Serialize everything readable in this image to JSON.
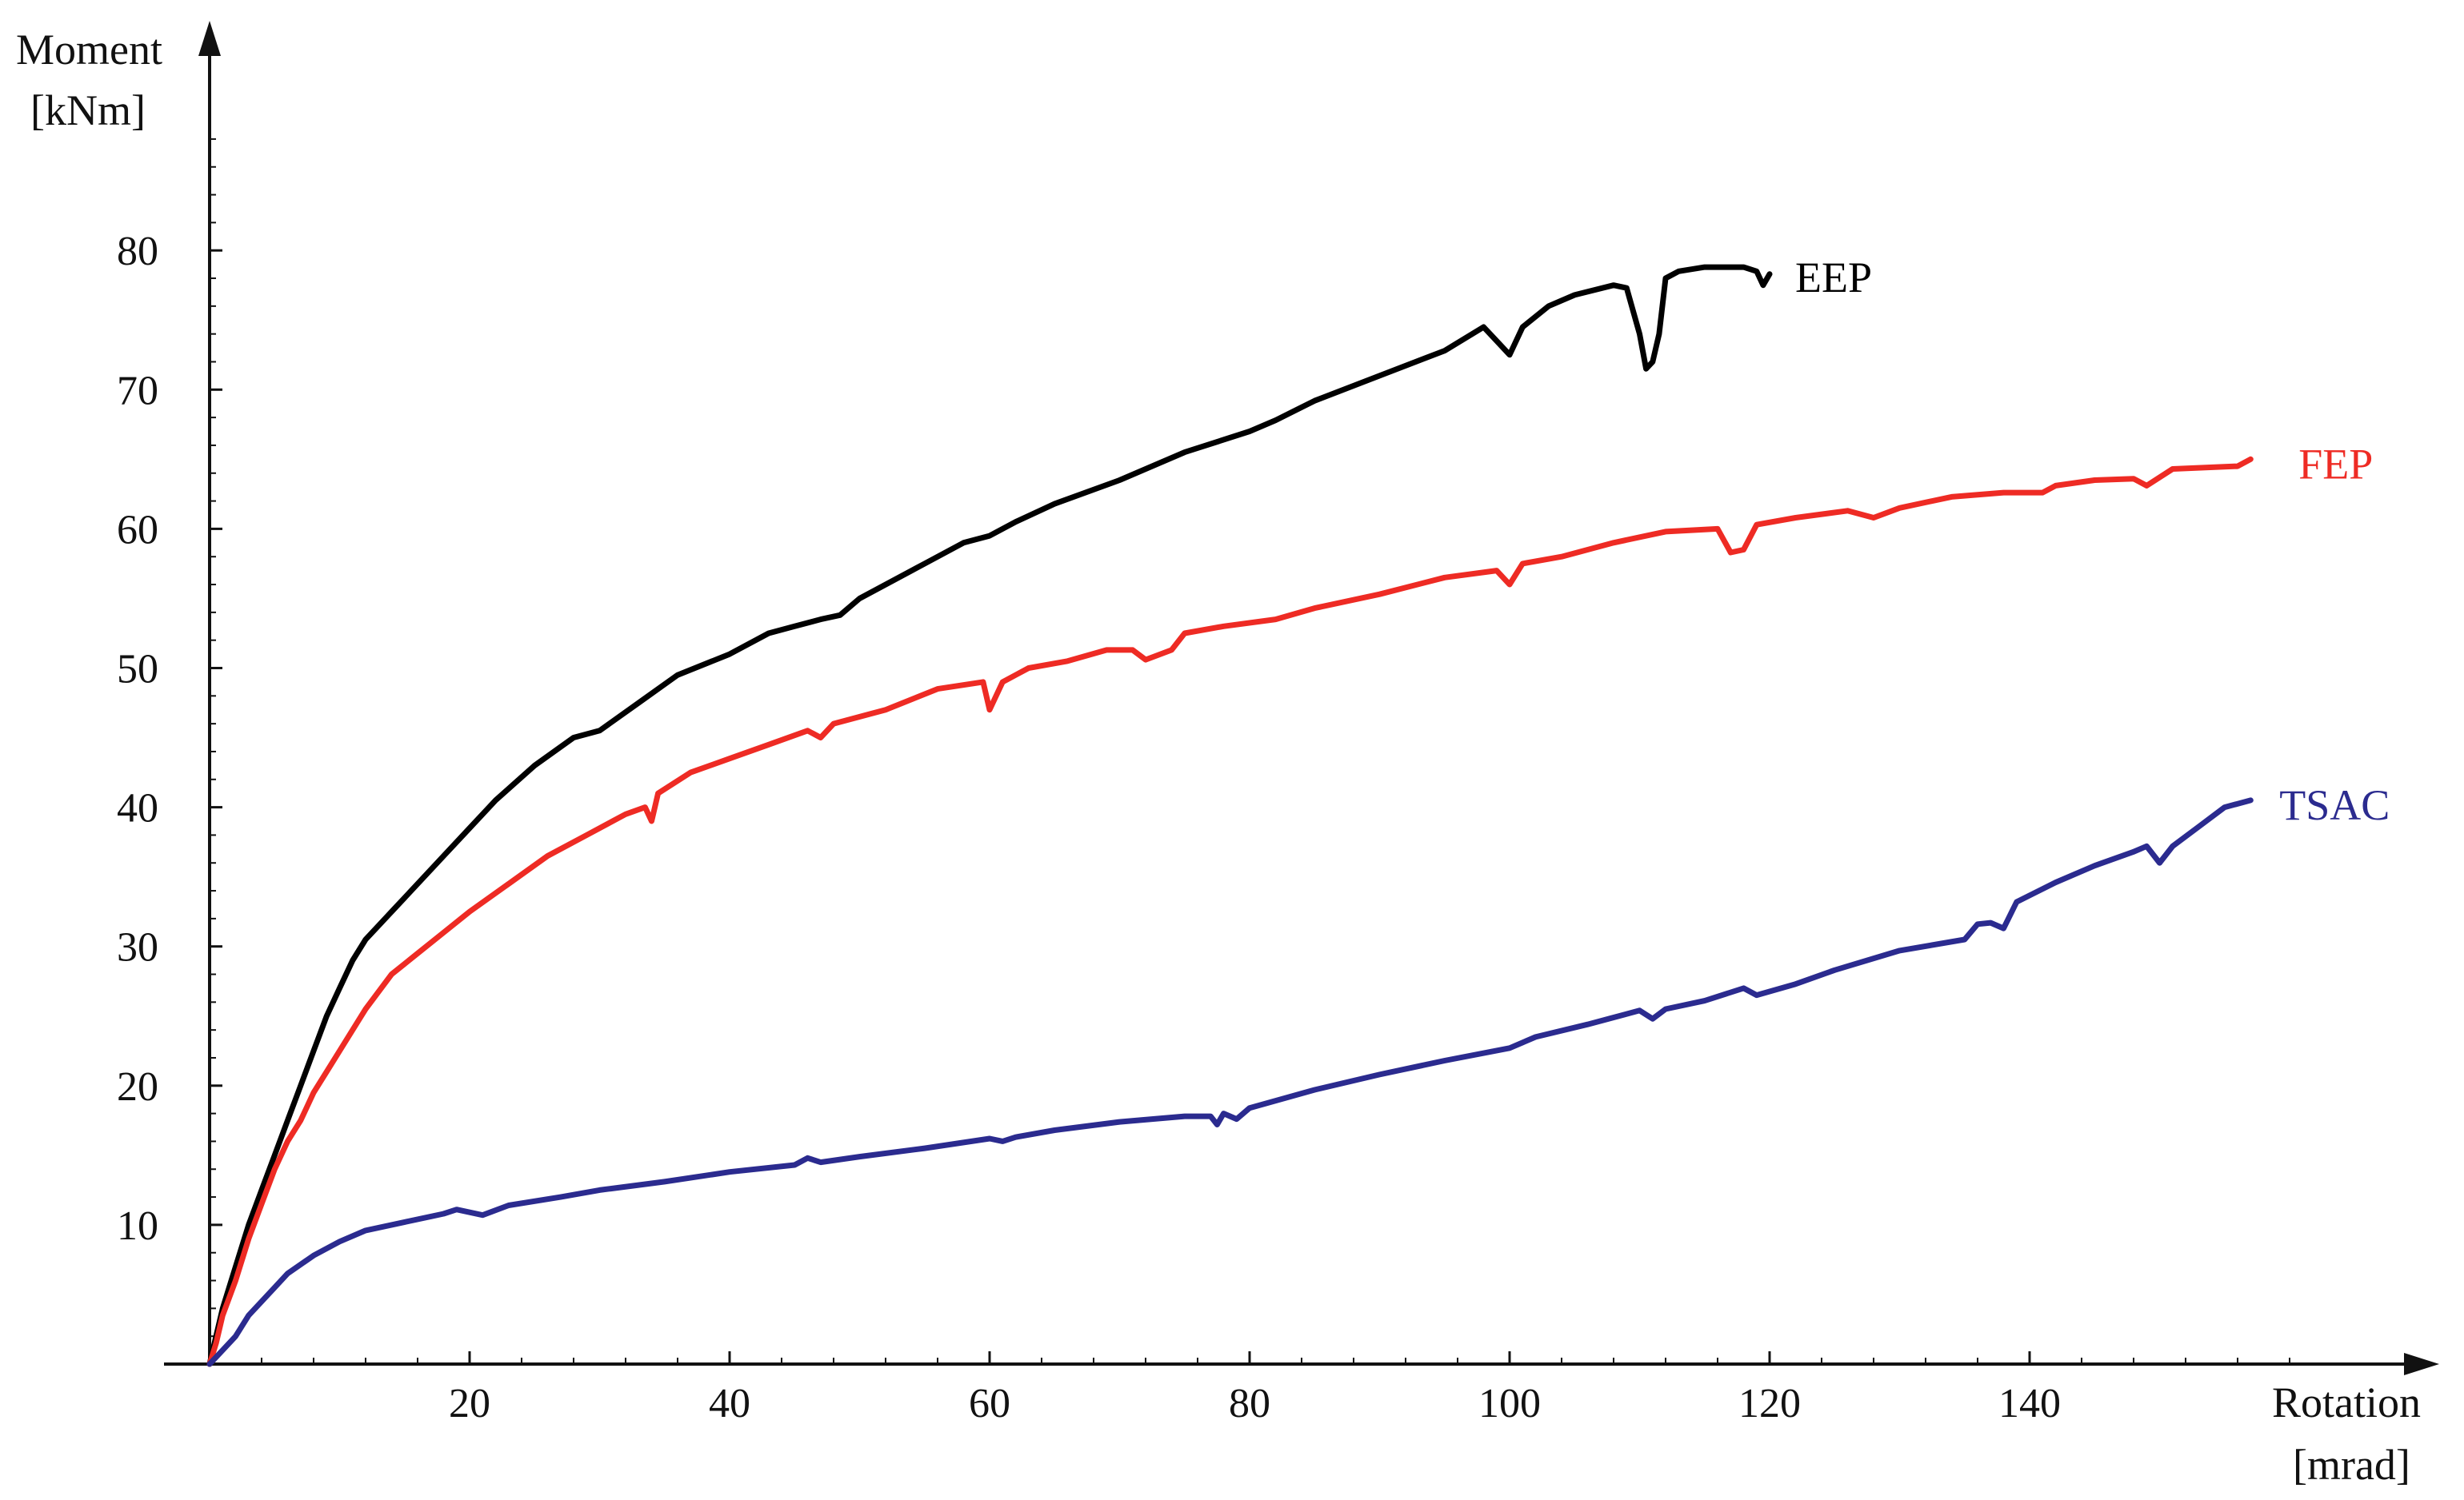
{
  "chart_data": {
    "type": "line",
    "title": "",
    "ylabel": [
      "Moment",
      "[kNm]"
    ],
    "xlabel": [
      "Rotation",
      "[mrad]"
    ],
    "xlim": [
      0,
      170
    ],
    "ylim": [
      0,
      90
    ],
    "x_ticks": [
      20,
      40,
      60,
      80,
      100,
      120,
      140
    ],
    "y_ticks": [
      10,
      20,
      30,
      40,
      50,
      60,
      70,
      80
    ],
    "grid": false,
    "legend": "inline labels at line ends",
    "series": [
      {
        "name": "EEP",
        "color": "#000000",
        "points": [
          [
            0,
            0
          ],
          [
            0.5,
            2
          ],
          [
            1,
            4
          ],
          [
            2,
            7
          ],
          [
            3,
            10
          ],
          [
            4,
            12.5
          ],
          [
            5,
            15
          ],
          [
            6,
            17.5
          ],
          [
            7,
            20
          ],
          [
            8,
            22.5
          ],
          [
            9,
            25
          ],
          [
            10,
            27
          ],
          [
            11,
            29
          ],
          [
            12,
            30.5
          ],
          [
            14,
            32.5
          ],
          [
            16,
            34.5
          ],
          [
            18,
            36.5
          ],
          [
            20,
            38.5
          ],
          [
            22,
            40.5
          ],
          [
            25,
            43
          ],
          [
            28,
            45
          ],
          [
            30,
            45.5
          ],
          [
            33,
            47.5
          ],
          [
            36,
            49.5
          ],
          [
            40,
            51
          ],
          [
            43,
            52.5
          ],
          [
            45,
            53
          ],
          [
            47,
            53.5
          ],
          [
            48.5,
            53.8
          ],
          [
            50,
            55
          ],
          [
            55,
            57.5
          ],
          [
            58,
            59
          ],
          [
            60,
            59.5
          ],
          [
            62,
            60.5
          ],
          [
            65,
            61.8
          ],
          [
            70,
            63.5
          ],
          [
            75,
            65.5
          ],
          [
            80,
            67
          ],
          [
            82,
            67.8
          ],
          [
            85,
            69.2
          ],
          [
            90,
            71
          ],
          [
            95,
            72.8
          ],
          [
            98,
            74.5
          ],
          [
            99,
            73.5
          ],
          [
            100,
            72.5
          ],
          [
            101,
            74.5
          ],
          [
            103,
            76
          ],
          [
            105,
            76.8
          ],
          [
            108,
            77.5
          ],
          [
            109,
            77.3
          ],
          [
            110,
            74
          ],
          [
            110.5,
            71.5
          ],
          [
            111,
            72
          ],
          [
            111.5,
            74
          ],
          [
            112,
            78
          ],
          [
            113,
            78.5
          ],
          [
            115,
            78.8
          ],
          [
            118,
            78.8
          ],
          [
            119,
            78.5
          ],
          [
            119.5,
            77.5
          ],
          [
            120,
            78.3
          ]
        ]
      },
      {
        "name": "FEP",
        "color": "#ee2b24",
        "points": [
          [
            0,
            0
          ],
          [
            0.5,
            1.5
          ],
          [
            1,
            3.5
          ],
          [
            2,
            6
          ],
          [
            3,
            9
          ],
          [
            4,
            11.5
          ],
          [
            5,
            14
          ],
          [
            6,
            16
          ],
          [
            7,
            17.5
          ],
          [
            8,
            19.5
          ],
          [
            9,
            21
          ],
          [
            10,
            22.5
          ],
          [
            12,
            25.5
          ],
          [
            14,
            28
          ],
          [
            16,
            29.5
          ],
          [
            18,
            31
          ],
          [
            20,
            32.5
          ],
          [
            23,
            34.5
          ],
          [
            26,
            36.5
          ],
          [
            29,
            38
          ],
          [
            32,
            39.5
          ],
          [
            33.5,
            40
          ],
          [
            34,
            39
          ],
          [
            34.5,
            41
          ],
          [
            37,
            42.5
          ],
          [
            40,
            43.5
          ],
          [
            43,
            44.5
          ],
          [
            46,
            45.5
          ],
          [
            47,
            45
          ],
          [
            48,
            46
          ],
          [
            52,
            47
          ],
          [
            56,
            48.5
          ],
          [
            59.5,
            49
          ],
          [
            60,
            47
          ],
          [
            61,
            49
          ],
          [
            63,
            50
          ],
          [
            66,
            50.5
          ],
          [
            69,
            51.3
          ],
          [
            71,
            51.3
          ],
          [
            72,
            50.6
          ],
          [
            74,
            51.3
          ],
          [
            75,
            52.5
          ],
          [
            78,
            53
          ],
          [
            82,
            53.5
          ],
          [
            85,
            54.3
          ],
          [
            90,
            55.3
          ],
          [
            95,
            56.5
          ],
          [
            99,
            57
          ],
          [
            100,
            56
          ],
          [
            101,
            57.5
          ],
          [
            104,
            58
          ],
          [
            108,
            59
          ],
          [
            112,
            59.8
          ],
          [
            116,
            60
          ],
          [
            117,
            58.3
          ],
          [
            118,
            58.5
          ],
          [
            119,
            60.3
          ],
          [
            122,
            60.8
          ],
          [
            126,
            61.3
          ],
          [
            128,
            60.8
          ],
          [
            130,
            61.5
          ],
          [
            134,
            62.3
          ],
          [
            138,
            62.6
          ],
          [
            141,
            62.6
          ],
          [
            142,
            63.1
          ],
          [
            145,
            63.5
          ],
          [
            148,
            63.6
          ],
          [
            149,
            63.1
          ],
          [
            151,
            64.3
          ],
          [
            156,
            64.5
          ],
          [
            157,
            65
          ]
        ]
      },
      {
        "name": "TSAC",
        "color": "#2b2b8f",
        "points": [
          [
            0,
            0
          ],
          [
            1,
            1
          ],
          [
            2,
            2
          ],
          [
            3,
            3.5
          ],
          [
            4,
            4.5
          ],
          [
            5,
            5.5
          ],
          [
            6,
            6.5
          ],
          [
            8,
            7.8
          ],
          [
            10,
            8.8
          ],
          [
            12,
            9.6
          ],
          [
            15,
            10.2
          ],
          [
            18,
            10.8
          ],
          [
            19,
            11.1
          ],
          [
            21,
            10.7
          ],
          [
            23,
            11.4
          ],
          [
            27,
            12
          ],
          [
            30,
            12.5
          ],
          [
            35,
            13.1
          ],
          [
            40,
            13.8
          ],
          [
            45,
            14.3
          ],
          [
            46,
            14.8
          ],
          [
            47,
            14.5
          ],
          [
            50,
            14.9
          ],
          [
            55,
            15.5
          ],
          [
            60,
            16.2
          ],
          [
            61,
            16
          ],
          [
            62,
            16.3
          ],
          [
            65,
            16.8
          ],
          [
            70,
            17.4
          ],
          [
            75,
            17.8
          ],
          [
            77,
            17.8
          ],
          [
            77.5,
            17.2
          ],
          [
            78,
            18
          ],
          [
            79,
            17.6
          ],
          [
            80,
            18.4
          ],
          [
            85,
            19.7
          ],
          [
            90,
            20.8
          ],
          [
            95,
            21.8
          ],
          [
            100,
            22.7
          ],
          [
            102,
            23.5
          ],
          [
            106,
            24.4
          ],
          [
            110,
            25.4
          ],
          [
            111,
            24.8
          ],
          [
            112,
            25.5
          ],
          [
            115,
            26.1
          ],
          [
            118,
            27
          ],
          [
            119,
            26.5
          ],
          [
            122,
            27.3
          ],
          [
            125,
            28.3
          ],
          [
            130,
            29.7
          ],
          [
            135,
            30.5
          ],
          [
            136,
            31.6
          ],
          [
            137,
            31.7
          ],
          [
            138,
            31.3
          ],
          [
            139,
            33.2
          ],
          [
            142,
            34.6
          ],
          [
            145,
            35.8
          ],
          [
            148,
            36.8
          ],
          [
            149,
            37.2
          ],
          [
            150,
            36
          ],
          [
            151,
            37.2
          ],
          [
            153,
            38.6
          ],
          [
            155,
            40
          ],
          [
            157,
            40.5
          ]
        ]
      }
    ]
  }
}
